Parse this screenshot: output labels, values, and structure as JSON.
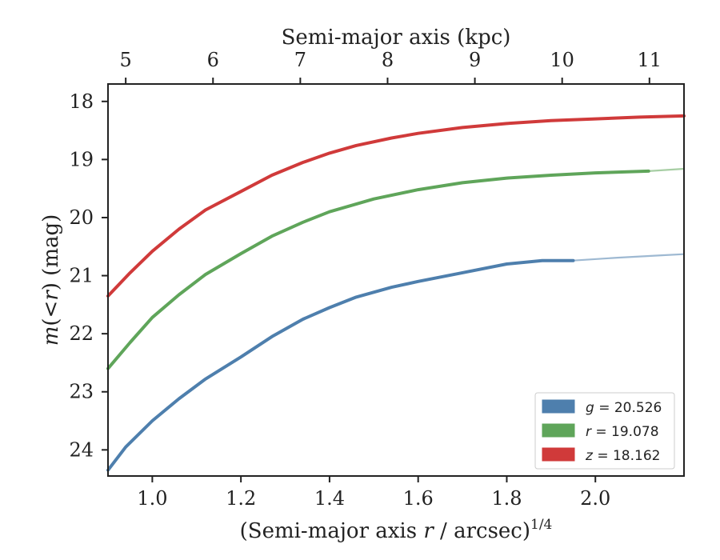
{
  "chart_data": {
    "type": "line",
    "xlabel": "(Semi-major axis r / arcsec)^1/4",
    "xlabel_parts": {
      "pre": "(Semi-major axis ",
      "var": "r",
      "mid": " / arcsec)",
      "sup": "1/4"
    },
    "ylabel": "m(<r) (mag)",
    "ylabel_parts": {
      "var": "m",
      "mid": "(<",
      "var2": "r",
      "post": ") (mag)"
    },
    "top_xlabel": "Semi-major axis (kpc)",
    "xlim": [
      0.9,
      2.2
    ],
    "ylim": [
      24.45,
      17.7
    ],
    "y_inverted": true,
    "xticks": [
      1.0,
      1.2,
      1.4,
      1.6,
      1.8,
      2.0
    ],
    "xtick_labels": [
      "1.0",
      "1.2",
      "1.4",
      "1.6",
      "1.8",
      "2.0"
    ],
    "yticks": [
      18,
      19,
      20,
      21,
      22,
      23,
      24
    ],
    "ytick_labels": [
      "18",
      "19",
      "20",
      "21",
      "22",
      "23",
      "24"
    ],
    "top_xticks_arcsec14": [
      0.94,
      1.137,
      1.334,
      1.531,
      1.728,
      1.925,
      2.122
    ],
    "top_xtick_labels": [
      "5",
      "6",
      "7",
      "8",
      "9",
      "10",
      "11"
    ],
    "legend_position": "lower-right",
    "series": [
      {
        "name": "g = 20.526",
        "band": "g",
        "value": "20.526",
        "color": "#4e7fad",
        "x": [
          0.9,
          0.94,
          1.0,
          1.06,
          1.12,
          1.2,
          1.27,
          1.34,
          1.4,
          1.46,
          1.54,
          1.6,
          1.7,
          1.8,
          1.88,
          1.95
        ],
        "y": [
          24.35,
          23.95,
          23.5,
          23.12,
          22.78,
          22.4,
          22.05,
          21.75,
          21.55,
          21.37,
          21.2,
          21.1,
          20.95,
          20.8,
          20.74,
          20.74
        ],
        "extension_x": [
          1.95,
          2.05,
          2.15,
          2.2
        ],
        "extension_y": [
          20.74,
          20.69,
          20.65,
          20.63
        ]
      },
      {
        "name": "r = 19.078",
        "band": "r",
        "value": "19.078",
        "color": "#5fa55a",
        "x": [
          0.9,
          0.95,
          1.0,
          1.06,
          1.12,
          1.2,
          1.27,
          1.34,
          1.4,
          1.5,
          1.6,
          1.7,
          1.8,
          1.9,
          2.0,
          2.12
        ],
        "y": [
          22.6,
          22.15,
          21.72,
          21.33,
          20.98,
          20.62,
          20.32,
          20.08,
          19.9,
          19.68,
          19.52,
          19.4,
          19.32,
          19.27,
          19.23,
          19.2
        ],
        "extension_x": [
          2.12,
          2.2
        ],
        "extension_y": [
          19.2,
          19.16
        ]
      },
      {
        "name": "z = 18.162",
        "band": "z",
        "value": "18.162",
        "color": "#d03a3a",
        "x": [
          0.9,
          0.95,
          1.0,
          1.06,
          1.12,
          1.2,
          1.27,
          1.34,
          1.4,
          1.46,
          1.54,
          1.6,
          1.7,
          1.8,
          1.9,
          2.0,
          2.1,
          2.2
        ],
        "y": [
          21.35,
          20.95,
          20.58,
          20.2,
          19.87,
          19.55,
          19.27,
          19.05,
          18.89,
          18.76,
          18.63,
          18.55,
          18.45,
          18.38,
          18.33,
          18.3,
          18.27,
          18.25
        ]
      }
    ]
  }
}
